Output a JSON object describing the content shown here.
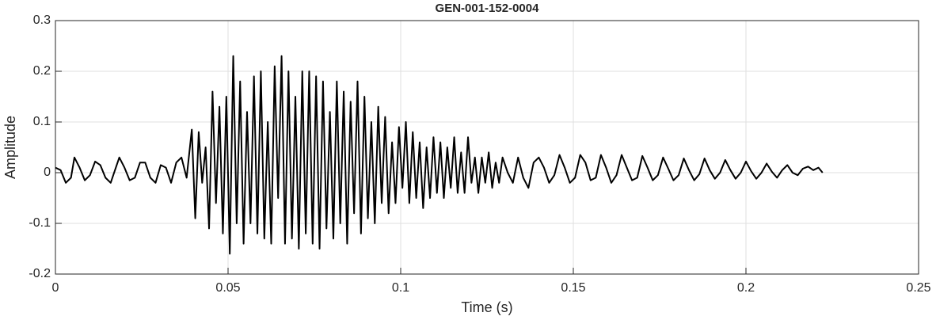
{
  "chart_data": {
    "type": "line",
    "title": "GEN-001-152-0004",
    "xlabel": "Time (s)",
    "ylabel": "Amplitude",
    "color": "#000000",
    "grid": true,
    "xlim": [
      0,
      0.25
    ],
    "xticks": [
      0,
      0.05,
      0.1,
      0.15,
      0.2,
      0.25
    ],
    "ylim": [
      -0.2,
      0.3
    ],
    "yticks": [
      -0.2,
      -0.1,
      0,
      0.1,
      0.2,
      0.3
    ],
    "x": [
      0,
      0.0015,
      0.003,
      0.0045,
      0.0055,
      0.007,
      0.0085,
      0.01,
      0.0115,
      0.013,
      0.0145,
      0.016,
      0.0175,
      0.0185,
      0.02,
      0.0215,
      0.023,
      0.0245,
      0.026,
      0.0275,
      0.029,
      0.0305,
      0.032,
      0.0335,
      0.035,
      0.0365,
      0.038,
      0.0395,
      0.0405,
      0.0415,
      0.0425,
      0.0435,
      0.0445,
      0.0455,
      0.0465,
      0.0475,
      0.0485,
      0.0495,
      0.0505,
      0.0515,
      0.0525,
      0.0535,
      0.0545,
      0.0555,
      0.0565,
      0.0575,
      0.0585,
      0.0595,
      0.0605,
      0.0615,
      0.0625,
      0.0635,
      0.0645,
      0.0655,
      0.0665,
      0.0675,
      0.0685,
      0.0695,
      0.0705,
      0.0715,
      0.0725,
      0.0735,
      0.0745,
      0.0755,
      0.0765,
      0.0775,
      0.0785,
      0.0795,
      0.0805,
      0.0815,
      0.0825,
      0.0835,
      0.0845,
      0.0855,
      0.0865,
      0.0875,
      0.0885,
      0.0895,
      0.0905,
      0.0915,
      0.0925,
      0.0935,
      0.0945,
      0.0955,
      0.0965,
      0.0975,
      0.0985,
      0.0995,
      0.1005,
      0.1015,
      0.1025,
      0.1035,
      0.1045,
      0.1055,
      0.1065,
      0.1075,
      0.1085,
      0.1095,
      0.1105,
      0.1115,
      0.1125,
      0.1135,
      0.1145,
      0.1155,
      0.1165,
      0.1175,
      0.1185,
      0.1195,
      0.1205,
      0.1215,
      0.1225,
      0.1235,
      0.1245,
      0.1255,
      0.1265,
      0.1275,
      0.1285,
      0.1295,
      0.131,
      0.1325,
      0.134,
      0.1355,
      0.137,
      0.1385,
      0.14,
      0.1415,
      0.143,
      0.1445,
      0.146,
      0.1475,
      0.149,
      0.1505,
      0.152,
      0.1535,
      0.155,
      0.1565,
      0.158,
      0.1595,
      0.161,
      0.1625,
      0.164,
      0.1655,
      0.167,
      0.1685,
      0.17,
      0.1715,
      0.173,
      0.1745,
      0.176,
      0.1775,
      0.179,
      0.1805,
      0.182,
      0.1835,
      0.185,
      0.1865,
      0.188,
      0.1895,
      0.191,
      0.1925,
      0.194,
      0.1955,
      0.197,
      0.1985,
      0.2,
      0.2015,
      0.203,
      0.2045,
      0.206,
      0.2075,
      0.209,
      0.2105,
      0.212,
      0.2135,
      0.215,
      0.2165,
      0.218,
      0.2195,
      0.221,
      0.2222
    ],
    "values": [
      0.01,
      0.005,
      -0.02,
      -0.01,
      0.03,
      0.01,
      -0.015,
      -0.005,
      0.022,
      0.015,
      -0.01,
      -0.02,
      0.01,
      0.03,
      0.01,
      -0.015,
      -0.01,
      0.02,
      0.02,
      -0.01,
      -0.02,
      0.015,
      0.01,
      -0.02,
      0.02,
      0.03,
      -0.01,
      0.085,
      -0.09,
      0.08,
      -0.02,
      0.05,
      -0.11,
      0.16,
      -0.06,
      0.13,
      -0.12,
      0.15,
      -0.16,
      0.23,
      -0.1,
      0.18,
      -0.14,
      0.12,
      -0.1,
      0.19,
      -0.12,
      0.2,
      -0.13,
      0.1,
      -0.14,
      0.21,
      -0.05,
      0.23,
      -0.14,
      0.2,
      -0.13,
      0.15,
      -0.15,
      0.2,
      -0.12,
      0.2,
      -0.14,
      0.19,
      -0.15,
      0.18,
      -0.11,
      0.12,
      -0.13,
      0.18,
      -0.1,
      0.16,
      -0.14,
      0.14,
      -0.08,
      0.18,
      -0.12,
      0.15,
      -0.09,
      0.1,
      -0.1,
      0.13,
      -0.06,
      0.11,
      -0.08,
      0.06,
      -0.06,
      0.09,
      -0.03,
      0.1,
      -0.06,
      0.08,
      -0.05,
      0.06,
      -0.07,
      0.05,
      -0.05,
      0.07,
      -0.04,
      0.06,
      -0.05,
      0.05,
      -0.03,
      0.07,
      -0.04,
      0.04,
      -0.04,
      0.07,
      -0.02,
      0.03,
      -0.04,
      0.03,
      -0.02,
      0.04,
      -0.03,
      0.02,
      -0.02,
      0.03,
      0,
      -0.02,
      0.03,
      -0.01,
      -0.03,
      0.02,
      0.03,
      0.01,
      -0.02,
      -0.005,
      0.035,
      0.01,
      -0.02,
      -0.01,
      0.035,
      0.02,
      -0.015,
      -0.01,
      0.035,
      0.01,
      -0.02,
      -0.005,
      0.035,
      0.01,
      -0.015,
      -0.01,
      0.033,
      0.01,
      -0.015,
      -0.005,
      0.03,
      0.008,
      -0.015,
      -0.005,
      0.028,
      0.005,
      -0.015,
      -0.003,
      0.028,
      0.005,
      -0.012,
      0,
      0.025,
      0.005,
      -0.012,
      0,
      0.022,
      0.003,
      -0.012,
      0,
      0.018,
      0.002,
      -0.01,
      0.005,
      0.015,
      0,
      -0.005,
      0.008,
      0.012,
      0.005,
      0.01,
      0
    ]
  }
}
